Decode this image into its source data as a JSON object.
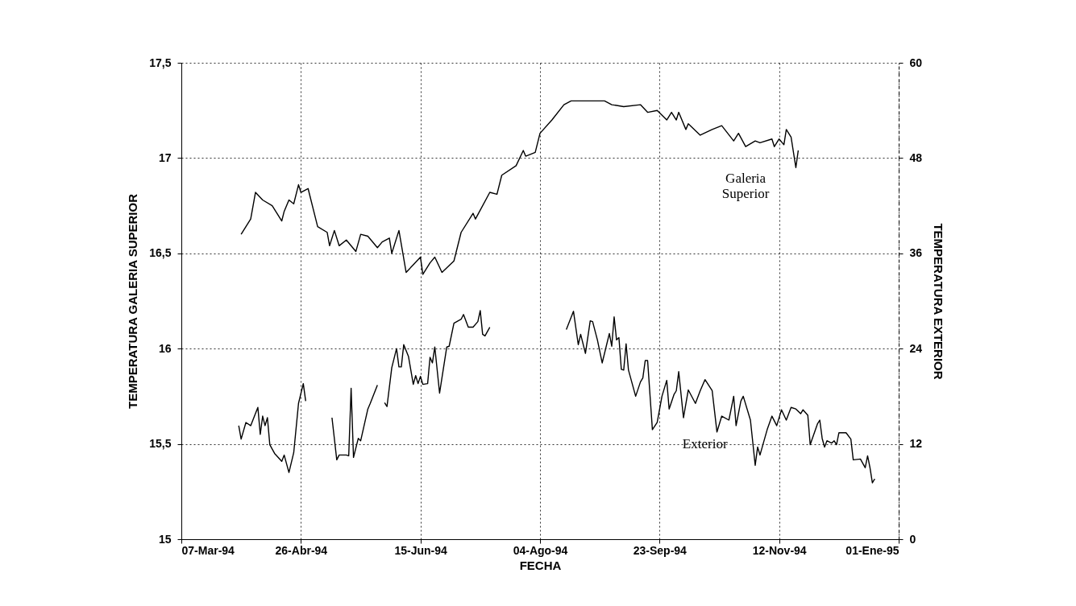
{
  "chart_data": {
    "type": "line",
    "xlabel": "FECHA",
    "ylabel": "TEMPERATURA GALERIA SUPERIOR",
    "y2label": "TEMPERATURA EXTERIOR",
    "xlim": [
      "1994-03-07",
      "1995-01-01"
    ],
    "xticks": [
      {
        "value": "1994-03-07",
        "label": "07-Mar-94"
      },
      {
        "value": "1994-04-26",
        "label": "26-Abr-94"
      },
      {
        "value": "1994-06-15",
        "label": "15-Jun-94"
      },
      {
        "value": "1994-08-04",
        "label": "04-Ago-94"
      },
      {
        "value": "1994-09-23",
        "label": "23-Sep-94"
      },
      {
        "value": "1994-11-12",
        "label": "12-Nov-94"
      },
      {
        "value": "1995-01-01",
        "label": "01-Ene-95"
      }
    ],
    "ylim": [
      15,
      17.5
    ],
    "yticks": [
      15,
      {
        "value": 15.5,
        "label": "15,5"
      },
      16,
      {
        "value": 16.5,
        "label": "16,5"
      },
      17,
      {
        "value": 17.5,
        "label": "17,5"
      }
    ],
    "y2lim": [
      0,
      60
    ],
    "y2ticks": [
      0,
      12,
      24,
      36,
      48,
      60
    ],
    "grid": true,
    "series": [
      {
        "name": "Galeria Superior",
        "color": "#000000",
        "x": [
          "1994-04-01",
          "1994-04-05",
          "1994-04-07",
          "1994-04-10",
          "1994-04-14",
          "1994-04-18",
          "1994-04-19",
          "1994-04-21",
          "1994-04-23",
          "1994-04-25",
          "1994-04-26",
          "1994-04-29",
          "1994-05-03",
          "1994-05-07",
          "1994-05-08",
          "1994-05-10",
          "1994-05-12",
          "1994-05-15",
          "1994-05-19",
          "1994-05-21",
          "1994-05-24",
          "1994-05-28",
          "1994-05-30",
          "1994-06-02",
          "1994-06-03",
          "1994-06-06",
          "1994-06-09",
          "1994-06-12",
          "1994-06-15",
          "1994-06-16",
          "1994-06-19",
          "1994-06-21",
          "1994-06-24",
          "1994-06-29",
          "1994-07-02",
          "1994-07-07",
          "1994-07-08",
          "1994-07-14",
          "1994-07-17",
          "1994-07-19",
          "1994-07-25",
          "1994-07-28",
          "1994-07-29",
          "1994-08-02",
          "1994-08-04",
          "1994-08-09",
          "1994-08-14",
          "1994-08-17",
          "1994-08-25",
          "1994-08-31",
          "1994-09-03",
          "1994-09-08",
          "1994-09-15",
          "1994-09-18",
          "1994-09-22",
          "1994-09-26",
          "1994-09-28",
          "1994-09-30",
          "1994-10-01",
          "1994-10-04",
          "1994-10-05",
          "1994-10-10",
          "1994-10-15",
          "1994-10-19",
          "1994-10-24",
          "1994-10-26",
          "1994-10-29",
          "1994-11-02",
          "1994-11-04",
          "1994-11-09",
          "1994-11-10",
          "1994-11-12",
          "1994-11-14",
          "1994-11-15",
          "1994-11-17",
          "1994-11-19",
          "1994-11-20"
        ],
        "values": [
          16.6,
          16.68,
          16.82,
          16.78,
          16.75,
          16.67,
          16.72,
          16.78,
          16.76,
          16.86,
          16.82,
          16.84,
          16.64,
          16.61,
          16.54,
          16.62,
          16.54,
          16.57,
          16.51,
          16.6,
          16.59,
          16.53,
          16.56,
          16.58,
          16.5,
          16.62,
          16.4,
          16.44,
          16.48,
          16.39,
          16.45,
          16.48,
          16.4,
          16.46,
          16.61,
          16.71,
          16.68,
          16.82,
          16.81,
          16.91,
          16.96,
          17.04,
          17.01,
          17.03,
          17.13,
          17.2,
          17.28,
          17.3,
          17.3,
          17.3,
          17.28,
          17.27,
          17.28,
          17.24,
          17.25,
          17.2,
          17.24,
          17.2,
          17.24,
          17.15,
          17.18,
          17.12,
          17.15,
          17.17,
          17.09,
          17.13,
          17.06,
          17.09,
          17.08,
          17.1,
          17.06,
          17.1,
          17.07,
          17.15,
          17.11,
          16.95,
          17.04
        ]
      },
      {
        "name": "Exterior",
        "color": "#000000",
        "axis": "y2",
        "x": [
          "1994-03-31",
          "1994-04-01",
          "1994-04-03",
          "1994-04-05",
          "1994-04-08",
          "1994-04-09",
          "1994-04-10",
          "1994-04-11",
          "1994-04-12",
          "1994-04-13",
          "1994-04-15",
          "1994-04-18",
          "1994-04-19",
          "1994-04-21",
          "1994-04-23",
          "1994-04-25",
          "1994-04-27",
          "1994-04-28",
          "1994-05-03",
          "1994-05-09",
          "1994-05-11",
          "1994-05-12",
          "1994-05-15",
          "1994-05-16",
          "1994-05-17",
          "1994-05-18",
          "1994-05-20",
          "1994-05-21",
          "1994-05-24",
          "1994-05-25",
          "1994-05-28",
          "1994-05-29",
          "1994-05-31",
          "1994-06-01",
          "1994-06-03",
          "1994-06-05",
          "1994-06-06",
          "1994-06-07",
          "1994-06-08",
          "1994-06-10",
          "1994-06-12",
          "1994-06-13",
          "1994-06-14",
          "1994-06-15",
          "1994-06-16",
          "1994-06-18",
          "1994-06-19",
          "1994-06-20",
          "1994-06-21",
          "1994-06-23",
          "1994-06-26",
          "1994-06-27",
          "1994-06-29",
          "1994-07-02",
          "1994-07-03",
          "1994-07-05",
          "1994-07-07",
          "1994-07-09",
          "1994-07-10",
          "1994-07-11",
          "1994-07-12",
          "1994-07-14",
          "1994-07-25",
          "1994-08-15",
          "1994-08-18",
          "1994-08-20",
          "1994-08-21",
          "1994-08-23",
          "1994-08-25",
          "1994-08-26",
          "1994-08-28",
          "1994-08-30",
          "1994-09-02",
          "1994-09-03",
          "1994-09-04",
          "1994-09-05",
          "1994-09-06",
          "1994-09-07",
          "1994-09-08",
          "1994-09-09",
          "1994-09-10",
          "1994-09-13",
          "1994-09-15",
          "1994-09-16",
          "1994-09-17",
          "1994-09-18",
          "1994-09-20",
          "1994-09-22",
          "1994-09-24",
          "1994-09-26",
          "1994-09-27",
          "1994-09-29",
          "1994-09-30",
          "1994-10-01",
          "1994-10-03",
          "1994-10-05",
          "1994-10-08",
          "1994-10-10",
          "1994-10-12",
          "1994-10-15",
          "1994-10-17",
          "1994-10-19",
          "1994-10-22",
          "1994-10-24",
          "1994-10-25",
          "1994-10-27",
          "1994-10-28",
          "1994-10-31",
          "1994-11-02",
          "1994-11-03",
          "1994-11-04",
          "1994-11-07",
          "1994-11-09",
          "1994-11-11",
          "1994-11-13",
          "1994-11-15",
          "1994-11-17",
          "1994-11-19",
          "1994-11-21",
          "1994-11-22",
          "1994-11-24",
          "1994-11-25",
          "1994-11-28",
          "1994-11-29",
          "1994-11-30",
          "1994-12-01",
          "1994-12-02",
          "1994-12-04",
          "1994-12-05",
          "1994-12-06",
          "1994-12-07",
          "1994-12-10",
          "1994-12-12",
          "1994-12-13",
          "1994-12-16",
          "1994-12-18",
          "1994-12-19",
          "1994-12-20",
          "1994-12-21",
          "1994-12-22"
        ],
        "values": [
          14.3,
          12.6,
          14.7,
          14.3,
          16.6,
          13.2,
          15.5,
          14.3,
          15.3,
          11.9,
          10.8,
          9.8,
          10.6,
          8.4,
          10.9,
          17.1,
          19.6,
          17.4,
          null,
          15.3,
          10.0,
          10.6,
          10.6,
          10.5,
          19.0,
          10.3,
          12.7,
          12.4,
          16.4,
          17.1,
          19.4,
          null,
          17.2,
          16.7,
          21.6,
          24.0,
          21.7,
          21.7,
          24.5,
          23.0,
          19.5,
          20.6,
          19.6,
          20.5,
          19.5,
          19.6,
          22.9,
          22.2,
          24.2,
          18.4,
          24.2,
          24.3,
          27.2,
          27.7,
          28.3,
          26.7,
          26.7,
          27.4,
          28.8,
          25.8,
          25.6,
          26.7,
          null,
          26.4,
          28.7,
          24.5,
          25.8,
          23.4,
          27.5,
          27.4,
          25.1,
          22.2,
          25.9,
          24.3,
          28.0,
          25.1,
          25.4,
          21.4,
          21.3,
          24.6,
          21.3,
          18.0,
          19.8,
          20.3,
          22.5,
          22.5,
          13.8,
          14.7,
          18.0,
          20.0,
          16.4,
          18.2,
          18.7,
          21.1,
          15.3,
          18.8,
          17.1,
          18.7,
          20.1,
          18.7,
          13.5,
          15.5,
          15.0,
          18.0,
          14.3,
          17.4,
          18.0,
          15.0,
          9.3,
          11.6,
          10.6,
          13.8,
          15.5,
          14.3,
          16.3,
          15.0,
          16.6,
          16.4,
          15.8,
          16.3,
          15.6,
          11.9,
          14.5,
          15.0,
          12.7,
          11.6,
          12.4,
          12.1,
          12.4,
          11.9,
          13.4,
          13.4,
          12.6,
          10.0,
          10.1,
          9.0,
          10.5,
          9.0,
          7.1,
          7.6
        ]
      }
    ]
  }
}
